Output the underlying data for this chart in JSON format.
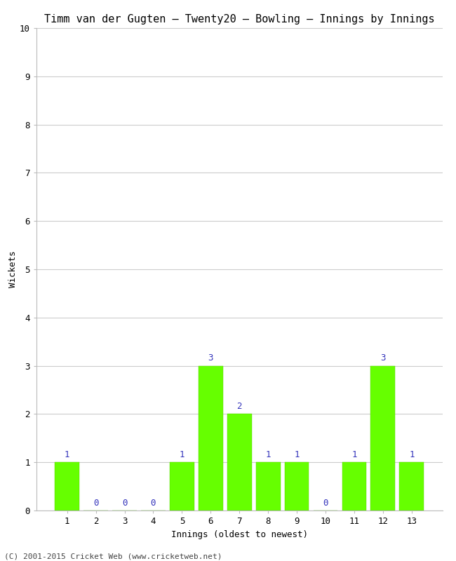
{
  "title": "Timm van der Gugten – Twenty20 – Bowling – Innings by Innings",
  "xlabel": "Innings (oldest to newest)",
  "ylabel": "Wickets",
  "copyright": "(C) 2001-2015 Cricket Web (www.cricketweb.net)",
  "innings": [
    1,
    2,
    3,
    4,
    5,
    6,
    7,
    8,
    9,
    10,
    11,
    12,
    13
  ],
  "wickets": [
    1,
    0,
    0,
    0,
    1,
    3,
    2,
    1,
    1,
    0,
    1,
    3,
    1
  ],
  "bar_color": "#66ff00",
  "bar_edge_color": "#55cc00",
  "ylim": [
    0,
    10
  ],
  "yticks": [
    0,
    1,
    2,
    3,
    4,
    5,
    6,
    7,
    8,
    9,
    10
  ],
  "label_color": "#3333bb",
  "background_color": "#ffffff",
  "plot_bg_color": "#ffffff",
  "grid_color": "#cccccc",
  "title_fontsize": 11,
  "axis_label_fontsize": 9,
  "tick_fontsize": 9,
  "bar_label_fontsize": 9,
  "bar_width": 0.85
}
